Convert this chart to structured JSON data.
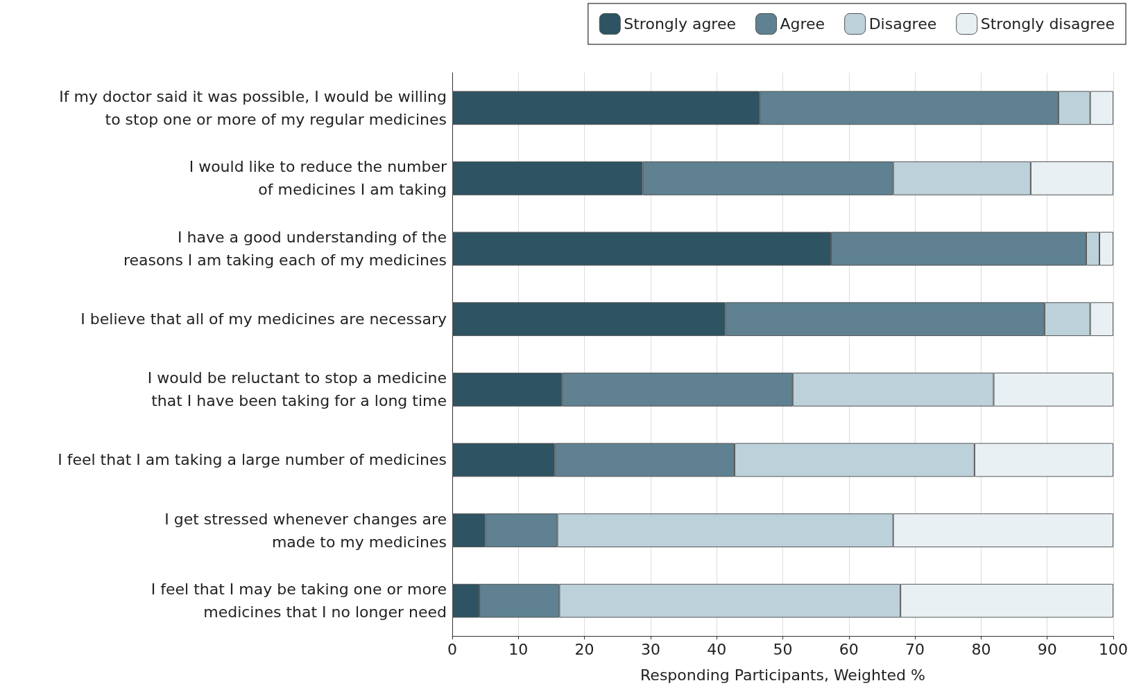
{
  "chart_data": {
    "type": "bar",
    "orientation": "horizontal",
    "stacked": true,
    "xlabel": "Responding Participants, Weighted %",
    "categories": [
      "If my doctor said it was possible, I would be willing\nto stop one or more of my regular medicines",
      "I would like to reduce the number\nof medicines I am taking",
      "I have a good understanding of the\nreasons I am taking each of my medicines",
      "I believe that all of my medicines are necessary",
      "I would be reluctant to stop a medicine\nthat I have been taking for a long time",
      "I feel that I am taking a large number of medicines",
      "I get stressed whenever changes are\nmade to my medicines",
      "I feel that I may be taking one or more\nmedicines that I no longer need"
    ],
    "series": [
      {
        "name": "Strongly agree",
        "color": "#2e5362",
        "values": [
          46.5,
          28.8,
          57.3,
          41.3,
          16.6,
          15.5,
          5.0,
          4.1
        ]
      },
      {
        "name": "Agree",
        "color": "#5f8191",
        "values": [
          45.2,
          37.9,
          38.6,
          48.3,
          34.9,
          27.2,
          10.9,
          12.1
        ]
      },
      {
        "name": "Disagree",
        "color": "#bcd1da",
        "values": [
          4.8,
          20.8,
          2.0,
          6.9,
          30.4,
          36.3,
          50.8,
          51.6
        ]
      },
      {
        "name": "Strongly disagree",
        "color": "#e8f0f3",
        "values": [
          3.5,
          12.5,
          2.1,
          3.5,
          18.1,
          21.0,
          33.3,
          32.2
        ]
      }
    ],
    "xlim": [
      0,
      100
    ],
    "xticks": [
      0,
      10,
      20,
      30,
      40,
      50,
      60,
      70,
      80,
      90,
      100
    ],
    "grid": "x",
    "legend": "top right"
  }
}
